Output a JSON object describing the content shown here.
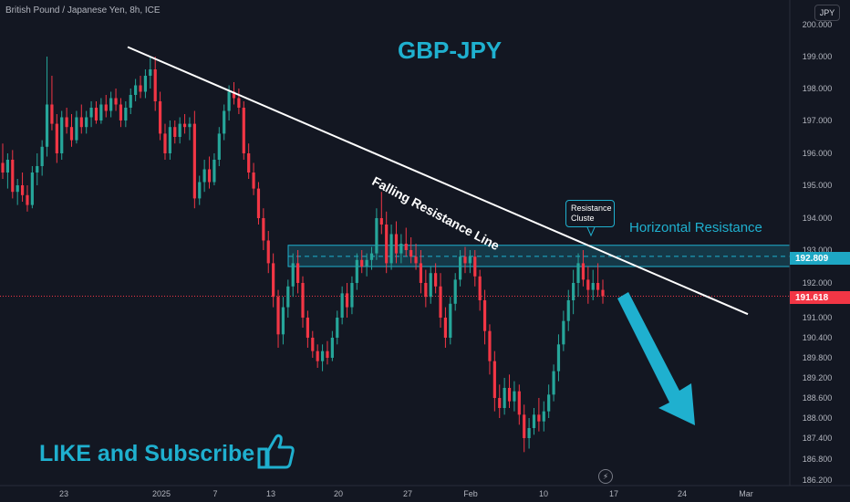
{
  "header": {
    "symbol": "British Pound / Japanese Yen, 8h, ICE",
    "currency": "JPY"
  },
  "annotations": {
    "falling_line": "Falling Resistance Line",
    "horizontal": "Horizontal Resistance",
    "callout_line1": "Resistance",
    "callout_line2": "Cluste",
    "like": "LIKE and Subscribe"
  },
  "price_tags": {
    "resistance": "192.809",
    "last": "191.618"
  },
  "colors": {
    "accent": "#1fb0cf",
    "up": "#26a69a",
    "down": "#f23645",
    "background": "#131722"
  },
  "chart_data": {
    "type": "candlestick",
    "title": "GBP-JPY",
    "y_axis": {
      "ticks": [
        {
          "value": 200,
          "label": "200.000"
        },
        {
          "value": 199,
          "label": "199.000"
        },
        {
          "value": 198,
          "label": "198.000"
        },
        {
          "value": 197,
          "label": "197.000"
        },
        {
          "value": 196,
          "label": "196.000"
        },
        {
          "value": 195,
          "label": "195.000"
        },
        {
          "value": 194,
          "label": "194.000"
        },
        {
          "value": 193,
          "label": "193.000"
        },
        {
          "value": 192,
          "label": "192.000"
        },
        {
          "value": 191,
          "label": "191.000"
        },
        {
          "value": 190.4,
          "label": "190.400"
        },
        {
          "value": 189.8,
          "label": "189.800"
        },
        {
          "value": 189.2,
          "label": "189.200"
        },
        {
          "value": 188.6,
          "label": "188.600"
        },
        {
          "value": 188.0,
          "label": "188.000"
        },
        {
          "value": 187.4,
          "label": "187.400"
        },
        {
          "value": 186.8,
          "label": "186.800"
        },
        {
          "value": 186.2,
          "label": "186.200"
        }
      ]
    },
    "x_axis": {
      "labels": [
        "23",
        "2025",
        "7",
        "13",
        "20",
        "27",
        "Feb",
        "10",
        "17",
        "24",
        "Mar"
      ]
    },
    "resistance_zone": {
      "low": 192.5,
      "high": 193.15,
      "mid": 192.809
    },
    "last_price": 191.618,
    "falling_resistance": [
      {
        "x": 0,
        "y": 199.3
      },
      {
        "x": 100,
        "y": 191.1
      }
    ],
    "candles": [
      {
        "o": 195.7,
        "h": 196.3,
        "l": 195.2,
        "c": 195.4
      },
      {
        "o": 195.4,
        "h": 196.0,
        "l": 194.9,
        "c": 195.8
      },
      {
        "o": 195.8,
        "h": 196.1,
        "l": 194.6,
        "c": 194.8
      },
      {
        "o": 194.8,
        "h": 195.2,
        "l": 194.4,
        "c": 195.0
      },
      {
        "o": 195.0,
        "h": 195.4,
        "l": 194.5,
        "c": 194.7
      },
      {
        "o": 194.7,
        "h": 195.0,
        "l": 194.2,
        "c": 194.4
      },
      {
        "o": 194.4,
        "h": 195.6,
        "l": 194.3,
        "c": 195.4
      },
      {
        "o": 195.4,
        "h": 196.0,
        "l": 195.0,
        "c": 195.6
      },
      {
        "o": 195.6,
        "h": 196.4,
        "l": 195.3,
        "c": 196.2
      },
      {
        "o": 196.2,
        "h": 199.0,
        "l": 195.9,
        "c": 197.5
      },
      {
        "o": 197.5,
        "h": 198.4,
        "l": 196.7,
        "c": 196.9
      },
      {
        "o": 196.9,
        "h": 197.2,
        "l": 195.7,
        "c": 196.0
      },
      {
        "o": 196.0,
        "h": 197.3,
        "l": 195.8,
        "c": 197.1
      },
      {
        "o": 197.1,
        "h": 197.4,
        "l": 196.6,
        "c": 196.8
      },
      {
        "o": 196.8,
        "h": 197.2,
        "l": 196.2,
        "c": 196.4
      },
      {
        "o": 196.4,
        "h": 197.3,
        "l": 196.3,
        "c": 197.1
      },
      {
        "o": 197.1,
        "h": 197.5,
        "l": 196.6,
        "c": 196.8
      },
      {
        "o": 196.8,
        "h": 197.3,
        "l": 196.6,
        "c": 197.1
      },
      {
        "o": 197.1,
        "h": 197.6,
        "l": 196.8,
        "c": 197.4
      },
      {
        "o": 197.4,
        "h": 197.6,
        "l": 196.9,
        "c": 197.0
      },
      {
        "o": 197.0,
        "h": 197.7,
        "l": 196.9,
        "c": 197.5
      },
      {
        "o": 197.5,
        "h": 197.8,
        "l": 197.1,
        "c": 197.3
      },
      {
        "o": 197.3,
        "h": 197.9,
        "l": 197.1,
        "c": 197.7
      },
      {
        "o": 197.7,
        "h": 198.0,
        "l": 197.3,
        "c": 197.5
      },
      {
        "o": 197.5,
        "h": 197.7,
        "l": 196.8,
        "c": 197.0
      },
      {
        "o": 197.0,
        "h": 197.6,
        "l": 196.8,
        "c": 197.4
      },
      {
        "o": 197.4,
        "h": 198.0,
        "l": 197.2,
        "c": 197.8
      },
      {
        "o": 197.8,
        "h": 198.3,
        "l": 197.6,
        "c": 198.1
      },
      {
        "o": 198.1,
        "h": 198.4,
        "l": 197.7,
        "c": 197.9
      },
      {
        "o": 197.9,
        "h": 198.6,
        "l": 197.7,
        "c": 198.4
      },
      {
        "o": 198.4,
        "h": 199.0,
        "l": 198.0,
        "c": 198.6
      },
      {
        "o": 198.6,
        "h": 199.0,
        "l": 197.3,
        "c": 197.6
      },
      {
        "o": 197.6,
        "h": 197.9,
        "l": 196.4,
        "c": 196.6
      },
      {
        "o": 196.6,
        "h": 196.9,
        "l": 195.8,
        "c": 196.0
      },
      {
        "o": 196.0,
        "h": 197.0,
        "l": 195.8,
        "c": 196.8
      },
      {
        "o": 196.8,
        "h": 197.0,
        "l": 196.3,
        "c": 196.5
      },
      {
        "o": 196.5,
        "h": 197.1,
        "l": 196.3,
        "c": 196.9
      },
      {
        "o": 196.9,
        "h": 197.2,
        "l": 196.6,
        "c": 196.8
      },
      {
        "o": 196.8,
        "h": 197.1,
        "l": 196.4,
        "c": 196.9
      },
      {
        "o": 196.9,
        "h": 197.3,
        "l": 194.3,
        "c": 194.6
      },
      {
        "o": 194.6,
        "h": 195.3,
        "l": 194.4,
        "c": 195.1
      },
      {
        "o": 195.1,
        "h": 195.8,
        "l": 194.8,
        "c": 195.5
      },
      {
        "o": 195.5,
        "h": 195.9,
        "l": 194.9,
        "c": 195.1
      },
      {
        "o": 195.1,
        "h": 196.0,
        "l": 195.0,
        "c": 195.8
      },
      {
        "o": 195.8,
        "h": 196.8,
        "l": 195.6,
        "c": 196.6
      },
      {
        "o": 196.6,
        "h": 197.5,
        "l": 196.4,
        "c": 197.3
      },
      {
        "o": 197.3,
        "h": 198.1,
        "l": 197.0,
        "c": 197.9
      },
      {
        "o": 197.9,
        "h": 198.2,
        "l": 197.5,
        "c": 197.7
      },
      {
        "o": 197.7,
        "h": 198.0,
        "l": 197.2,
        "c": 197.4
      },
      {
        "o": 197.4,
        "h": 197.6,
        "l": 195.8,
        "c": 196.0
      },
      {
        "o": 196.0,
        "h": 196.3,
        "l": 195.2,
        "c": 195.4
      },
      {
        "o": 195.4,
        "h": 195.7,
        "l": 194.7,
        "c": 194.9
      },
      {
        "o": 194.9,
        "h": 195.1,
        "l": 193.8,
        "c": 194.0
      },
      {
        "o": 194.0,
        "h": 194.3,
        "l": 193.0,
        "c": 193.3
      },
      {
        "o": 193.3,
        "h": 193.6,
        "l": 192.3,
        "c": 192.6
      },
      {
        "o": 192.6,
        "h": 192.9,
        "l": 191.3,
        "c": 191.6
      },
      {
        "o": 191.6,
        "h": 191.8,
        "l": 190.1,
        "c": 190.5
      },
      {
        "o": 190.5,
        "h": 191.6,
        "l": 190.2,
        "c": 191.3
      },
      {
        "o": 191.3,
        "h": 192.1,
        "l": 191.0,
        "c": 191.9
      },
      {
        "o": 191.9,
        "h": 192.9,
        "l": 191.6,
        "c": 192.6
      },
      {
        "o": 192.6,
        "h": 193.0,
        "l": 191.7,
        "c": 192.0
      },
      {
        "o": 192.0,
        "h": 192.2,
        "l": 190.7,
        "c": 191.0
      },
      {
        "o": 191.0,
        "h": 191.2,
        "l": 190.1,
        "c": 190.4
      },
      {
        "o": 190.4,
        "h": 190.6,
        "l": 189.8,
        "c": 190.0
      },
      {
        "o": 190.0,
        "h": 190.2,
        "l": 189.5,
        "c": 189.7
      },
      {
        "o": 189.7,
        "h": 190.2,
        "l": 189.4,
        "c": 190.0
      },
      {
        "o": 190.0,
        "h": 190.3,
        "l": 189.6,
        "c": 189.8
      },
      {
        "o": 189.8,
        "h": 190.6,
        "l": 189.7,
        "c": 190.4
      },
      {
        "o": 190.4,
        "h": 191.2,
        "l": 190.2,
        "c": 191.0
      },
      {
        "o": 191.0,
        "h": 191.9,
        "l": 190.8,
        "c": 191.7
      },
      {
        "o": 191.7,
        "h": 192.0,
        "l": 191.0,
        "c": 191.3
      },
      {
        "o": 191.3,
        "h": 192.2,
        "l": 191.1,
        "c": 192.0
      },
      {
        "o": 192.0,
        "h": 192.9,
        "l": 191.8,
        "c": 192.7
      },
      {
        "o": 192.7,
        "h": 193.0,
        "l": 192.3,
        "c": 192.5
      },
      {
        "o": 192.5,
        "h": 192.9,
        "l": 192.2,
        "c": 192.7
      },
      {
        "o": 192.7,
        "h": 193.1,
        "l": 192.4,
        "c": 192.9
      },
      {
        "o": 192.9,
        "h": 194.3,
        "l": 192.7,
        "c": 194.0
      },
      {
        "o": 194.0,
        "h": 194.8,
        "l": 193.5,
        "c": 193.8
      },
      {
        "o": 193.8,
        "h": 194.2,
        "l": 192.3,
        "c": 192.6
      },
      {
        "o": 192.6,
        "h": 193.8,
        "l": 192.4,
        "c": 193.5
      },
      {
        "o": 193.5,
        "h": 193.9,
        "l": 192.6,
        "c": 192.9
      },
      {
        "o": 192.9,
        "h": 193.5,
        "l": 192.6,
        "c": 193.2
      },
      {
        "o": 193.2,
        "h": 193.7,
        "l": 192.8,
        "c": 193.0
      },
      {
        "o": 193.0,
        "h": 193.4,
        "l": 192.6,
        "c": 192.8
      },
      {
        "o": 192.8,
        "h": 193.2,
        "l": 192.4,
        "c": 192.6
      },
      {
        "o": 192.6,
        "h": 193.0,
        "l": 191.7,
        "c": 192.0
      },
      {
        "o": 192.0,
        "h": 192.4,
        "l": 191.3,
        "c": 191.6
      },
      {
        "o": 191.6,
        "h": 192.5,
        "l": 191.4,
        "c": 192.3
      },
      {
        "o": 192.3,
        "h": 192.6,
        "l": 191.7,
        "c": 191.9
      },
      {
        "o": 191.9,
        "h": 192.3,
        "l": 190.7,
        "c": 191.0
      },
      {
        "o": 191.0,
        "h": 191.3,
        "l": 190.1,
        "c": 190.4
      },
      {
        "o": 190.4,
        "h": 191.6,
        "l": 190.2,
        "c": 191.4
      },
      {
        "o": 191.4,
        "h": 192.3,
        "l": 191.2,
        "c": 192.1
      },
      {
        "o": 192.1,
        "h": 193.0,
        "l": 191.9,
        "c": 192.8
      },
      {
        "o": 192.8,
        "h": 193.1,
        "l": 192.3,
        "c": 192.6
      },
      {
        "o": 192.6,
        "h": 193.0,
        "l": 192.3,
        "c": 192.8
      },
      {
        "o": 192.8,
        "h": 193.0,
        "l": 191.9,
        "c": 192.2
      },
      {
        "o": 192.2,
        "h": 192.4,
        "l": 191.2,
        "c": 191.5
      },
      {
        "o": 191.5,
        "h": 191.8,
        "l": 190.2,
        "c": 190.6
      },
      {
        "o": 190.6,
        "h": 190.8,
        "l": 189.3,
        "c": 189.7
      },
      {
        "o": 189.7,
        "h": 190.0,
        "l": 188.2,
        "c": 188.6
      },
      {
        "o": 188.6,
        "h": 189.0,
        "l": 188.0,
        "c": 188.3
      },
      {
        "o": 188.3,
        "h": 189.2,
        "l": 188.1,
        "c": 188.9
      },
      {
        "o": 188.9,
        "h": 189.3,
        "l": 188.3,
        "c": 188.5
      },
      {
        "o": 188.5,
        "h": 189.1,
        "l": 188.2,
        "c": 188.8
      },
      {
        "o": 188.8,
        "h": 189.0,
        "l": 187.8,
        "c": 188.1
      },
      {
        "o": 188.1,
        "h": 188.4,
        "l": 187.0,
        "c": 187.4
      },
      {
        "o": 187.4,
        "h": 188.0,
        "l": 187.1,
        "c": 187.7
      },
      {
        "o": 187.7,
        "h": 188.3,
        "l": 187.5,
        "c": 188.1
      },
      {
        "o": 188.1,
        "h": 188.6,
        "l": 187.6,
        "c": 187.9
      },
      {
        "o": 187.9,
        "h": 188.5,
        "l": 187.6,
        "c": 188.2
      },
      {
        "o": 188.2,
        "h": 189.0,
        "l": 188.0,
        "c": 188.7
      },
      {
        "o": 188.7,
        "h": 189.6,
        "l": 188.5,
        "c": 189.4
      },
      {
        "o": 189.4,
        "h": 190.5,
        "l": 189.1,
        "c": 190.2
      },
      {
        "o": 190.2,
        "h": 191.2,
        "l": 190.0,
        "c": 190.9
      },
      {
        "o": 190.9,
        "h": 191.8,
        "l": 190.6,
        "c": 191.5
      },
      {
        "o": 191.5,
        "h": 192.4,
        "l": 191.1,
        "c": 192.0
      },
      {
        "o": 192.0,
        "h": 192.9,
        "l": 191.6,
        "c": 192.6
      },
      {
        "o": 192.6,
        "h": 193.0,
        "l": 191.9,
        "c": 192.1
      },
      {
        "o": 192.1,
        "h": 192.5,
        "l": 191.4,
        "c": 191.8
      },
      {
        "o": 191.8,
        "h": 192.4,
        "l": 191.5,
        "c": 192.0
      },
      {
        "o": 192.0,
        "h": 192.6,
        "l": 191.6,
        "c": 191.8
      },
      {
        "o": 191.8,
        "h": 192.1,
        "l": 191.4,
        "c": 191.618
      }
    ]
  }
}
